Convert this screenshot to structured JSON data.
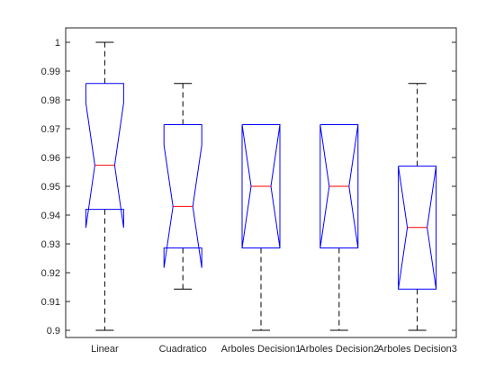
{
  "chart_data": {
    "type": "boxplot",
    "title": "",
    "xlabel": "",
    "ylabel": "",
    "ylim": [
      0.8975,
      1.005
    ],
    "yticks": [
      0.9,
      0.91,
      0.92,
      0.93,
      0.94,
      0.95,
      0.96,
      0.97,
      0.98,
      0.99,
      1
    ],
    "ytick_labels": [
      "0.9",
      "0.91",
      "0.92",
      "0.93",
      "0.94",
      "0.95",
      "0.96",
      "0.97",
      "0.98",
      "0.99",
      "1"
    ],
    "notched": true,
    "grid": false,
    "categories": [
      "Linear",
      "Cuadratico",
      "Arboles Decision1",
      "Arboles Decision2",
      "Arboles Decision3"
    ],
    "boxes": [
      {
        "whisker_low": 0.9,
        "q1": 0.942,
        "median": 0.9573,
        "q3": 0.9857,
        "whisker_high": 1.0,
        "notch_low": 0.979,
        "notch_high": 0.9356
      },
      {
        "whisker_low": 0.9143,
        "q1": 0.9286,
        "median": 0.943,
        "q3": 0.9714,
        "whisker_high": 0.9857,
        "notch_low": 0.9643,
        "notch_high": 0.9217
      },
      {
        "whisker_low": 0.9,
        "q1": 0.9286,
        "median": 0.95,
        "q3": 0.9714,
        "whisker_high": 0.9714,
        "notch_low": 0.9286,
        "notch_high": 0.9714
      },
      {
        "whisker_low": 0.9,
        "q1": 0.9286,
        "median": 0.95,
        "q3": 0.9714,
        "whisker_high": 0.9714,
        "notch_low": 0.9286,
        "notch_high": 0.9714
      },
      {
        "whisker_low": 0.9,
        "q1": 0.9143,
        "median": 0.9357,
        "q3": 0.957,
        "whisker_high": 0.9857,
        "notch_low": 0.9143,
        "notch_high": 0.957
      }
    ],
    "colors": {
      "box": "#0000ff",
      "median": "#ff0000",
      "whisker": "#000000",
      "axis": "#262626"
    }
  }
}
